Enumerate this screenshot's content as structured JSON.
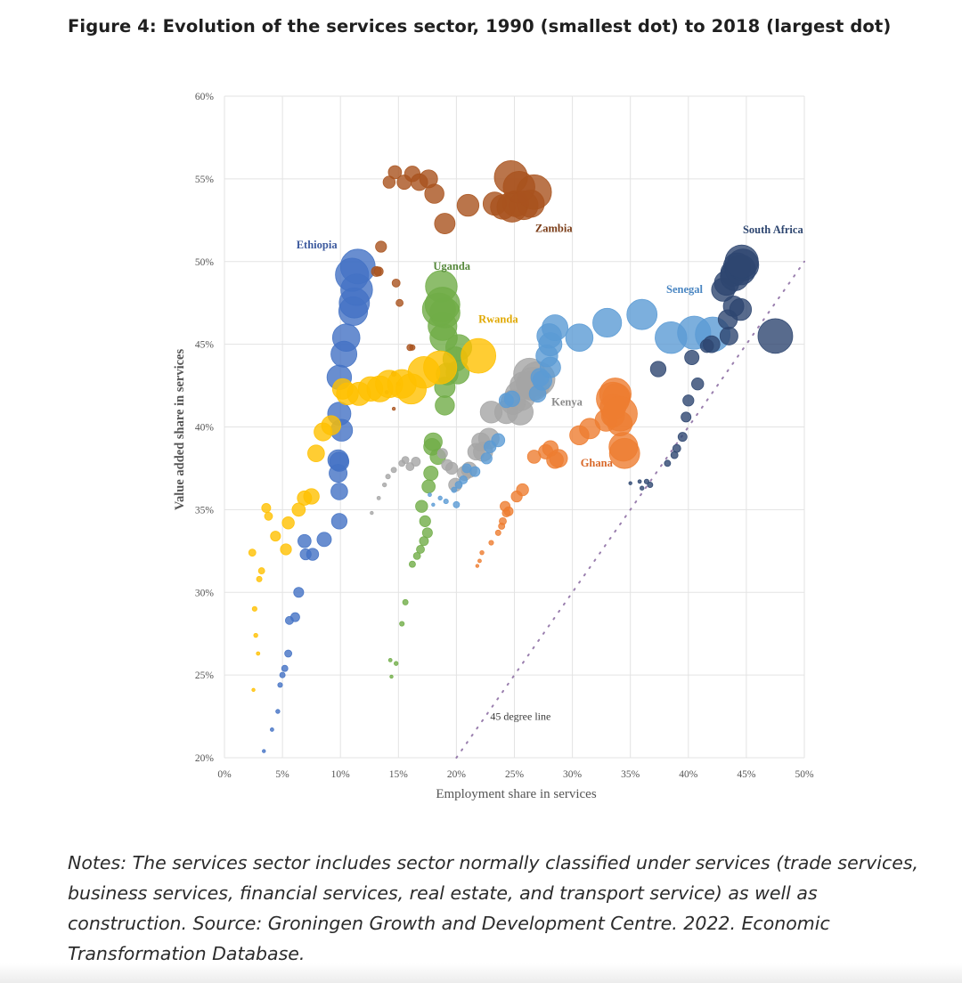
{
  "figure": {
    "title": "Figure 4: Evolution of the services sector, 1990 (smallest dot) to 2018 (largest dot)",
    "notes": "Notes: The services sector includes sector normally classified under services (trade services, business services, financial services, real estate, and transport service) as well as construction. Source: Groningen Growth and Development Centre. 2022. Economic Transformation Database."
  },
  "chart_data": {
    "type": "scatter",
    "title": "Evolution of the services sector, 1990 (smallest dot) to 2018 (largest dot)",
    "xlabel": "Employment share in services",
    "ylabel": "Value added share in services",
    "xlim": [
      0,
      50
    ],
    "ylim": [
      20,
      60
    ],
    "x_ticks": [
      0,
      5,
      10,
      15,
      20,
      25,
      30,
      35,
      40,
      45,
      50
    ],
    "x_tick_labels": [
      "0%",
      "5%",
      "10%",
      "15%",
      "20%",
      "25%",
      "30%",
      "35%",
      "40%",
      "45%",
      "50%"
    ],
    "y_ticks": [
      20,
      25,
      30,
      35,
      40,
      45,
      50,
      55,
      60
    ],
    "y_tick_labels": [
      "20%",
      "25%",
      "30%",
      "35%",
      "40%",
      "45%",
      "50%",
      "55%",
      "60%"
    ],
    "grid": true,
    "reference_line": {
      "label": "45 degree line",
      "from": [
        20,
        20
      ],
      "to": [
        50,
        50
      ],
      "label_at": [
        22.3,
        22.5
      ]
    },
    "size_encoding": "year",
    "years": [
      1990,
      1991,
      1992,
      1993,
      1994,
      1995,
      1996,
      1997,
      1998,
      1999,
      2000,
      2001,
      2002,
      2003,
      2004,
      2005,
      2006,
      2007,
      2008,
      2009,
      2010,
      2011,
      2012,
      2013,
      2014,
      2015,
      2016,
      2017,
      2018
    ],
    "series": [
      {
        "name": "Ethiopia",
        "color": "#4472c4",
        "label_color": "#3d5a9e",
        "label_at": [
          6.2,
          50.8
        ],
        "points": [
          [
            3.4,
            20.4
          ],
          [
            4.1,
            21.7
          ],
          [
            4.6,
            22.8
          ],
          [
            4.8,
            24.4
          ],
          [
            5.0,
            25.0
          ],
          [
            5.2,
            25.4
          ],
          [
            5.5,
            26.3
          ],
          [
            5.6,
            28.3
          ],
          [
            6.1,
            28.5
          ],
          [
            6.4,
            30.0
          ],
          [
            7.0,
            32.3
          ],
          [
            7.6,
            32.3
          ],
          [
            6.9,
            33.1
          ],
          [
            8.6,
            33.2
          ],
          [
            9.9,
            34.3
          ],
          [
            9.9,
            36.1
          ],
          [
            9.8,
            37.2
          ],
          [
            9.9,
            37.9
          ],
          [
            9.8,
            38.0
          ],
          [
            10.1,
            39.8
          ],
          [
            9.9,
            40.8
          ],
          [
            9.9,
            43.0
          ],
          [
            10.3,
            44.4
          ],
          [
            10.5,
            45.4
          ],
          [
            11.1,
            47.0
          ],
          [
            11.2,
            47.5
          ],
          [
            11.4,
            48.3
          ],
          [
            11.0,
            49.2
          ],
          [
            11.5,
            49.7
          ]
        ]
      },
      {
        "name": "Zambia",
        "color": "#a9531e",
        "label_color": "#7a3c17",
        "label_at": [
          26.8,
          51.8
        ],
        "points": [
          [
            14.6,
            41.1
          ],
          [
            14.0,
            42.1
          ],
          [
            15.0,
            42.6
          ],
          [
            14.6,
            43.2
          ],
          [
            16.2,
            44.8
          ],
          [
            16.0,
            44.8
          ],
          [
            15.1,
            47.5
          ],
          [
            14.8,
            48.7
          ],
          [
            13.3,
            49.4
          ],
          [
            13.1,
            49.4
          ],
          [
            13.5,
            50.9
          ],
          [
            14.2,
            54.8
          ],
          [
            14.7,
            55.4
          ],
          [
            15.5,
            54.8
          ],
          [
            16.2,
            55.3
          ],
          [
            16.8,
            54.8
          ],
          [
            17.6,
            55.0
          ],
          [
            18.1,
            54.1
          ],
          [
            19.0,
            52.3
          ],
          [
            21.0,
            53.4
          ],
          [
            23.3,
            53.5
          ],
          [
            24.0,
            53.3
          ],
          [
            25.1,
            53.5
          ],
          [
            26.4,
            53.5
          ],
          [
            25.8,
            53.4
          ],
          [
            24.8,
            53.3
          ],
          [
            25.4,
            54.5
          ],
          [
            24.7,
            55.1
          ],
          [
            26.7,
            54.2
          ]
        ]
      },
      {
        "name": "Uganda",
        "color": "#70ad47",
        "label_color": "#55883a",
        "label_at": [
          18.0,
          49.5
        ],
        "points": [
          [
            14.4,
            24.9
          ],
          [
            14.3,
            25.9
          ],
          [
            14.8,
            25.7
          ],
          [
            15.3,
            28.1
          ],
          [
            15.6,
            29.4
          ],
          [
            16.2,
            31.7
          ],
          [
            16.6,
            32.2
          ],
          [
            16.9,
            32.6
          ],
          [
            17.2,
            33.1
          ],
          [
            17.5,
            33.6
          ],
          [
            17.3,
            34.3
          ],
          [
            17.0,
            35.2
          ],
          [
            17.6,
            36.4
          ],
          [
            17.8,
            37.2
          ],
          [
            18.4,
            38.2
          ],
          [
            17.9,
            38.8
          ],
          [
            18.0,
            39.1
          ],
          [
            19.0,
            41.3
          ],
          [
            19.0,
            42.4
          ],
          [
            19.2,
            43.2
          ],
          [
            20.1,
            43.3
          ],
          [
            19.9,
            44.1
          ],
          [
            20.2,
            44.8
          ],
          [
            18.9,
            45.4
          ],
          [
            18.8,
            46.1
          ],
          [
            19.0,
            46.9
          ],
          [
            18.7,
            48.5
          ],
          [
            18.5,
            47.1
          ],
          [
            18.8,
            47.4
          ]
        ]
      },
      {
        "name": "Rwanda",
        "color": "#ffc000",
        "label_color": "#e0a800",
        "label_at": [
          21.9,
          46.3
        ],
        "points": [
          [
            2.5,
            24.1
          ],
          [
            2.9,
            26.3
          ],
          [
            2.7,
            27.4
          ],
          [
            2.6,
            29.0
          ],
          [
            3.0,
            30.8
          ],
          [
            3.2,
            31.3
          ],
          [
            2.4,
            32.4
          ],
          [
            3.8,
            34.6
          ],
          [
            3.6,
            35.1
          ],
          [
            4.4,
            33.4
          ],
          [
            5.3,
            32.6
          ],
          [
            5.5,
            34.2
          ],
          [
            6.4,
            35.0
          ],
          [
            6.9,
            35.7
          ],
          [
            7.5,
            35.8
          ],
          [
            7.9,
            38.4
          ],
          [
            8.5,
            39.7
          ],
          [
            9.2,
            40.1
          ],
          [
            10.2,
            42.3
          ],
          [
            10.6,
            42.0
          ],
          [
            11.6,
            42.0
          ],
          [
            12.6,
            42.3
          ],
          [
            13.4,
            42.3
          ],
          [
            14.2,
            42.6
          ],
          [
            15.3,
            42.6
          ],
          [
            16.1,
            42.3
          ],
          [
            17.2,
            43.3
          ],
          [
            18.6,
            43.6
          ],
          [
            21.9,
            44.3
          ]
        ]
      },
      {
        "name": "Kenya",
        "color": "#a5a5a5",
        "label_color": "#8a8a8a",
        "label_at": [
          28.2,
          41.3
        ],
        "points": [
          [
            12.7,
            34.8
          ],
          [
            13.3,
            35.7
          ],
          [
            13.8,
            36.5
          ],
          [
            14.1,
            37.0
          ],
          [
            14.6,
            37.4
          ],
          [
            15.3,
            37.8
          ],
          [
            15.6,
            38.0
          ],
          [
            16.0,
            37.6
          ],
          [
            16.5,
            37.9
          ],
          [
            18.8,
            38.4
          ],
          [
            19.2,
            37.7
          ],
          [
            19.6,
            37.5
          ],
          [
            19.9,
            36.5
          ],
          [
            20.7,
            37.2
          ],
          [
            21.1,
            37.4
          ],
          [
            21.7,
            38.5
          ],
          [
            22.1,
            39.1
          ],
          [
            22.3,
            38.5
          ],
          [
            22.8,
            39.3
          ],
          [
            23.0,
            40.9
          ],
          [
            24.3,
            40.9
          ],
          [
            24.9,
            41.5
          ],
          [
            25.5,
            40.9
          ],
          [
            25.8,
            42.5
          ],
          [
            26.5,
            42.5
          ],
          [
            25.5,
            41.9
          ],
          [
            26.3,
            43.2
          ],
          [
            26.6,
            42.6
          ],
          [
            27.0,
            42.9
          ]
        ]
      },
      {
        "name": "Senegal",
        "color": "#5b9bd5",
        "label_color": "#4a86c2",
        "label_at": [
          38.1,
          48.1
        ],
        "points": [
          [
            18.0,
            35.3
          ],
          [
            17.7,
            35.9
          ],
          [
            18.6,
            35.7
          ],
          [
            19.1,
            35.5
          ],
          [
            19.8,
            36.2
          ],
          [
            20.0,
            35.3
          ],
          [
            20.2,
            36.5
          ],
          [
            20.6,
            36.8
          ],
          [
            20.9,
            37.5
          ],
          [
            21.6,
            37.3
          ],
          [
            22.6,
            38.1
          ],
          [
            22.9,
            38.8
          ],
          [
            23.6,
            39.2
          ],
          [
            24.3,
            41.6
          ],
          [
            24.8,
            41.7
          ],
          [
            27.0,
            42.0
          ],
          [
            27.2,
            43.0
          ],
          [
            27.4,
            42.8
          ],
          [
            28.1,
            43.6
          ],
          [
            27.8,
            44.3
          ],
          [
            28.1,
            45.0
          ],
          [
            28.0,
            45.5
          ],
          [
            28.5,
            46.0
          ],
          [
            30.6,
            45.4
          ],
          [
            33.0,
            46.3
          ],
          [
            36.0,
            46.8
          ],
          [
            38.5,
            45.4
          ],
          [
            40.5,
            45.7
          ],
          [
            42.1,
            45.6
          ]
        ]
      },
      {
        "name": "Ghana",
        "color": "#ed7d31",
        "label_color": "#d9692a",
        "label_at": [
          30.7,
          37.6
        ],
        "points": [
          [
            21.8,
            31.6
          ],
          [
            22.0,
            31.9
          ],
          [
            22.2,
            32.4
          ],
          [
            23.0,
            33.0
          ],
          [
            23.6,
            33.6
          ],
          [
            23.9,
            34.0
          ],
          [
            24.0,
            34.3
          ],
          [
            24.3,
            34.8
          ],
          [
            24.5,
            34.9
          ],
          [
            24.2,
            35.2
          ],
          [
            25.2,
            35.8
          ],
          [
            25.7,
            36.2
          ],
          [
            26.7,
            38.2
          ],
          [
            27.7,
            38.5
          ],
          [
            28.1,
            38.7
          ],
          [
            28.5,
            38.0
          ],
          [
            28.8,
            38.1
          ],
          [
            30.6,
            39.5
          ],
          [
            31.5,
            39.9
          ],
          [
            32.9,
            40.4
          ],
          [
            33.5,
            40.7
          ],
          [
            34.1,
            40.2
          ],
          [
            33.5,
            41.2
          ],
          [
            33.8,
            41.8
          ],
          [
            34.4,
            38.8
          ],
          [
            34.5,
            38.4
          ],
          [
            33.7,
            42.0
          ],
          [
            33.5,
            41.7
          ],
          [
            34.1,
            40.8
          ]
        ]
      },
      {
        "name": "South Africa",
        "color": "#2e4670",
        "label_color": "#2e4670",
        "label_at": [
          44.7,
          51.7
        ],
        "points": [
          [
            35.0,
            36.6
          ],
          [
            35.8,
            36.7
          ],
          [
            36.0,
            36.3
          ],
          [
            36.4,
            36.7
          ],
          [
            36.7,
            36.5
          ],
          [
            38.2,
            37.8
          ],
          [
            38.8,
            38.3
          ],
          [
            39.0,
            38.7
          ],
          [
            39.5,
            39.4
          ],
          [
            39.8,
            40.6
          ],
          [
            40.0,
            41.6
          ],
          [
            40.8,
            42.6
          ],
          [
            41.6,
            44.9
          ],
          [
            40.3,
            44.2
          ],
          [
            37.4,
            43.5
          ],
          [
            42.0,
            45.0
          ],
          [
            43.5,
            45.5
          ],
          [
            43.4,
            46.5
          ],
          [
            43.9,
            47.3
          ],
          [
            44.5,
            47.1
          ],
          [
            43.0,
            48.3
          ],
          [
            43.3,
            48.7
          ],
          [
            43.9,
            49.3
          ],
          [
            44.2,
            49.7
          ],
          [
            44.0,
            49.1
          ],
          [
            44.5,
            49.5
          ],
          [
            44.7,
            49.8
          ],
          [
            44.6,
            50.0
          ],
          [
            47.5,
            45.5
          ]
        ]
      }
    ]
  }
}
